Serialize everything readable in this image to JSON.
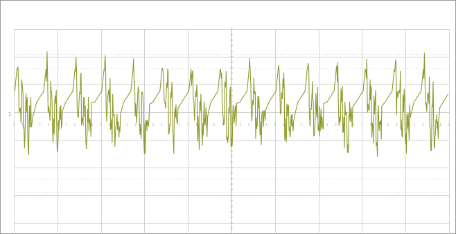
{
  "chart_data": {
    "type": "line",
    "display": "oscilloscope",
    "title": "",
    "xlabel": "",
    "ylabel": "",
    "divisions": {
      "x": 10,
      "y": 8
    },
    "grid": true,
    "xlim": [
      0,
      10
    ],
    "ylim": [
      -4,
      4
    ],
    "channel_marker": "1",
    "colors": {
      "trace": "#8f9a2c",
      "marker": "#8f9a2c",
      "grid": "#d3d3d3",
      "border": "#9a9a9a"
    },
    "series": [
      {
        "trace_baseline_div": 0.4,
        "period_div": 0.667,
        "cycles": 15,
        "spike_peak_div": 2.0,
        "spike_trough_div": -0.5,
        "x": [
          0,
          0.05,
          0.1,
          0.16,
          0.2,
          0.25,
          0.3,
          0.34,
          0.38,
          0.43,
          0.5,
          0.58,
          0.62,
          0.667
        ],
        "y": [
          1.2,
          2.0,
          0.6,
          1.4,
          -0.3,
          0.9,
          -0.5,
          0.4,
          0.1,
          0.5,
          0.8,
          1.0,
          1.1,
          1.2
        ]
      }
    ]
  }
}
